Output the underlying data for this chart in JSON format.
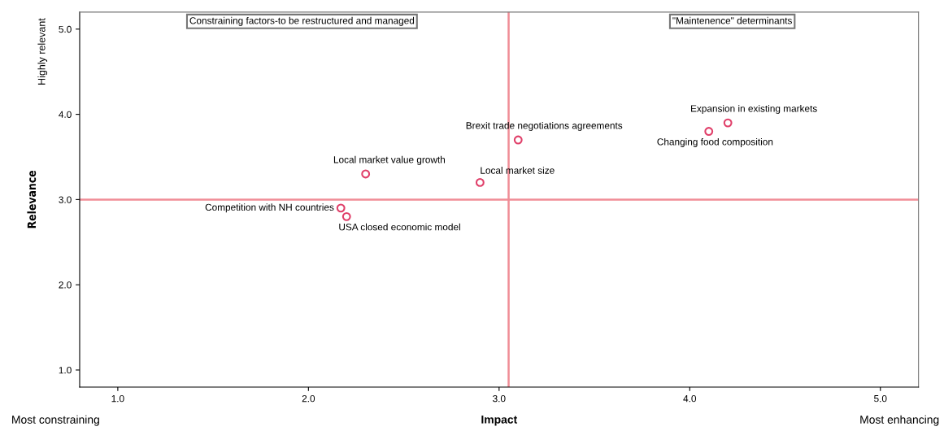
{
  "chart_data": {
    "type": "scatter",
    "xlabel": "Impact",
    "ylabel": "Relevance",
    "x": [
      4.2,
      3.1,
      4.1,
      2.3,
      2.9,
      2.17,
      2.2
    ],
    "values": [
      3.9,
      3.7,
      3.8,
      3.3,
      3.2,
      2.9,
      2.8
    ],
    "color": "#e0406a",
    "marker": "circle",
    "grid": false,
    "xlim": [
      0.8,
      5.2
    ],
    "xticks": [
      {
        "value": 1,
        "label": "1.0"
      },
      {
        "value": 2,
        "label": "2.0"
      },
      {
        "value": 3,
        "label": "3.0"
      },
      {
        "value": 4,
        "label": "4.0"
      },
      {
        "value": 5,
        "label": "5.0"
      }
    ],
    "ylim": [
      0.8,
      5.2
    ],
    "yticks": [
      {
        "value": 1,
        "label": "1.0"
      },
      {
        "value": 2,
        "label": "2.0"
      },
      {
        "value": 3,
        "label": "3.0"
      },
      {
        "value": 4,
        "label": "4.0"
      },
      {
        "value": 5,
        "label": "5.0"
      }
    ],
    "ref_lines": [
      {
        "axis": "x",
        "value": 3.05,
        "label": null,
        "color": "#f08c96"
      },
      {
        "axis": "y",
        "value": 3.0,
        "label": null,
        "color": "#f08c96"
      }
    ],
    "annotations": [
      {
        "text": "Expansion in existing markets",
        "x": 4.2,
        "y": 3.9
      },
      {
        "text": "Brexit trade negotiations agreements",
        "x": 3.1,
        "y": 3.7
      },
      {
        "text": "Changing food composition",
        "x": 4.1,
        "y": 3.8
      },
      {
        "text": "Local market value growth",
        "x": 2.3,
        "y": 3.3
      },
      {
        "text": "Local market size",
        "x": 2.9,
        "y": 3.2
      },
      {
        "text": "Competition with NH countries",
        "x": 2.17,
        "y": 2.9
      },
      {
        "text": "USA closed economic model",
        "x": 2.2,
        "y": 2.8
      },
      "Constraining factors-to be restructured and managed",
      "\"Maintenence\" determinants",
      "Highly relevant",
      "Most constraining",
      "Most enhancing"
    ]
  }
}
